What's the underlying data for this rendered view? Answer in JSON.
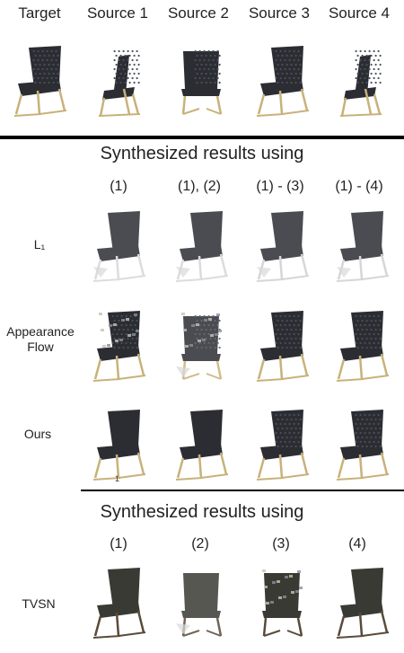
{
  "header": {
    "columns": [
      "Target",
      "Source 1",
      "Source 2",
      "Source 3",
      "Source 4"
    ]
  },
  "section1": {
    "title": "Synthesized results using",
    "columns": [
      "(1)",
      "(1), (2)",
      "(1) - (3)",
      "(1) - (4)"
    ],
    "rows": [
      "L₁",
      "Appearance Flow",
      "Ours"
    ],
    "stray_mark": "1"
  },
  "section2": {
    "title": "Synthesized results using",
    "columns": [
      "(1)",
      "(2)",
      "(3)",
      "(4)"
    ],
    "rows": [
      "TVSN"
    ]
  },
  "colors": {
    "seat": "#2b2d33",
    "weave": "#4a4f5a",
    "leg_gold": "#c8b27a",
    "leg_dark": "#5a4a3a",
    "rule": "#000000"
  },
  "icons": {
    "chair": "chair-image"
  }
}
